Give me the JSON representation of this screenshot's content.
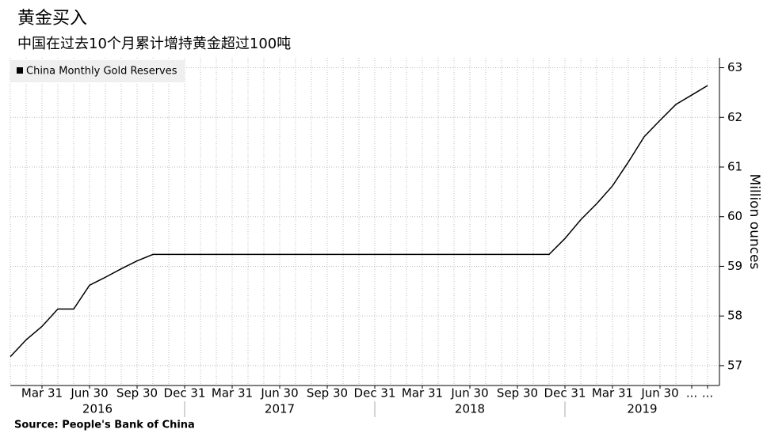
{
  "chart_data": {
    "type": "line",
    "title": "黄金买入",
    "subtitle": "中国在过去10个月累计增持黄金超过100吨",
    "y_axis_label": "Million ounces",
    "source": "Source: People's Bank of China",
    "x": [
      "2016-01-31",
      "2016-02-29",
      "2016-03-31",
      "2016-04-30",
      "2016-05-31",
      "2016-06-30",
      "2016-07-31",
      "2016-08-31",
      "2016-09-30",
      "2016-10-31",
      "2016-11-30",
      "2016-12-31",
      "2017-01-31",
      "2017-02-28",
      "2017-03-31",
      "2017-04-30",
      "2017-05-31",
      "2017-06-30",
      "2017-07-31",
      "2017-08-31",
      "2017-09-30",
      "2017-10-31",
      "2017-11-30",
      "2017-12-31",
      "2018-01-31",
      "2018-02-28",
      "2018-03-31",
      "2018-04-30",
      "2018-05-31",
      "2018-06-30",
      "2018-07-31",
      "2018-08-31",
      "2018-09-30",
      "2018-10-31",
      "2018-11-30",
      "2018-12-31",
      "2019-01-31",
      "2019-02-28",
      "2019-03-31",
      "2019-04-30",
      "2019-05-31",
      "2019-06-30",
      "2019-07-31",
      "2019-08-31",
      "2019-09-30"
    ],
    "series": [
      {
        "name": "China Monthly Gold Reserves",
        "color": "#000000",
        "values": [
          57.18,
          57.52,
          57.79,
          58.14,
          58.14,
          58.62,
          58.78,
          58.95,
          59.11,
          59.24,
          59.24,
          59.24,
          59.24,
          59.24,
          59.24,
          59.24,
          59.24,
          59.24,
          59.24,
          59.24,
          59.24,
          59.24,
          59.24,
          59.24,
          59.24,
          59.24,
          59.24,
          59.24,
          59.24,
          59.24,
          59.24,
          59.24,
          59.24,
          59.24,
          59.24,
          59.56,
          59.94,
          60.26,
          60.62,
          61.1,
          61.61,
          61.94,
          62.26,
          62.45,
          62.64
        ]
      }
    ],
    "xlim": [
      "2016-01-31",
      "2019-09-30"
    ],
    "xticks": [
      {
        "value": "2016-03-31",
        "label": "Mar 31"
      },
      {
        "value": "2016-06-30",
        "label": "Jun 30"
      },
      {
        "value": "2016-09-30",
        "label": "Sep 30"
      },
      {
        "value": "2016-12-31",
        "label": "Dec 31"
      },
      {
        "value": "2017-03-31",
        "label": "Mar 31"
      },
      {
        "value": "2017-06-30",
        "label": "Jun 30"
      },
      {
        "value": "2017-09-30",
        "label": "Sep 30"
      },
      {
        "value": "2017-12-31",
        "label": "Dec 31"
      },
      {
        "value": "2018-03-31",
        "label": "Mar 31"
      },
      {
        "value": "2018-06-30",
        "label": "Jun 30"
      },
      {
        "value": "2018-09-30",
        "label": "Sep 30"
      },
      {
        "value": "2018-12-31",
        "label": "Dec 31"
      },
      {
        "value": "2019-03-31",
        "label": "Mar 31"
      },
      {
        "value": "2019-06-30",
        "label": "Jun 30"
      },
      {
        "value": "2019-08-31",
        "label": "..."
      },
      {
        "value": "2019-09-30",
        "label": "..."
      }
    ],
    "years": [
      "2016",
      "2017",
      "2018",
      "2019"
    ],
    "ylim": [
      56.6,
      63.2
    ],
    "yticks": [
      57,
      58,
      59,
      60,
      61,
      62,
      63
    ],
    "grid": true,
    "legend": "top-left"
  }
}
